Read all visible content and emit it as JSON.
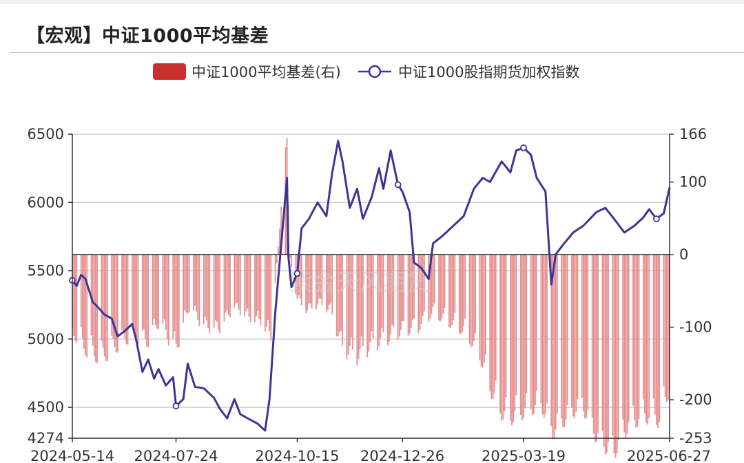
{
  "page": {
    "title": "【宏观】中证1000平均基差",
    "watermark": "紫金天风期货"
  },
  "colors": {
    "bar": "#e58f8f",
    "bar_legend": "#c9302c",
    "line": "#3f3494",
    "grid": "#d0d0d0",
    "axis": "#333333"
  },
  "chart_data": {
    "type": "bar+line",
    "title": "",
    "legend_position": "top-center",
    "grid": true,
    "x_tick_labels": [
      "2024-05-14",
      "2024-07-24",
      "2024-10-15",
      "2024-12-26",
      "2025-03-19",
      "2025-06-27"
    ],
    "x_range": [
      "2024-05-14",
      "2025-06-27"
    ],
    "y_left": {
      "min": 4274,
      "max": 6500,
      "ticks": [
        4274,
        4500,
        5000,
        5500,
        6000,
        6500
      ]
    },
    "y_right": {
      "min": -253,
      "max": 166,
      "ticks": [
        -253,
        -200,
        -100,
        0,
        100,
        166
      ]
    },
    "series": [
      {
        "name": "中证1000平均基差(右)",
        "kind": "bar",
        "axis": "right",
        "points": [
          [
            "2024-05-14",
            -100
          ],
          [
            "2024-05-24",
            -125
          ],
          [
            "2024-06-03",
            -135
          ],
          [
            "2024-06-13",
            -120
          ],
          [
            "2024-06-24",
            -105
          ],
          [
            "2024-07-04",
            -115
          ],
          [
            "2024-07-12",
            -90
          ],
          [
            "2024-07-24",
            -125
          ],
          [
            "2024-08-02",
            -70
          ],
          [
            "2024-08-12",
            -95
          ],
          [
            "2024-08-22",
            -100
          ],
          [
            "2024-09-02",
            -70
          ],
          [
            "2024-09-12",
            -85
          ],
          [
            "2024-09-20",
            -90
          ],
          [
            "2024-09-27",
            -110
          ],
          [
            "2024-10-08",
            160
          ],
          [
            "2024-10-10",
            -5
          ],
          [
            "2024-10-15",
            -60
          ],
          [
            "2024-10-22",
            -75
          ],
          [
            "2024-10-30",
            -65
          ],
          [
            "2024-11-07",
            -75
          ],
          [
            "2024-11-15",
            -125
          ],
          [
            "2024-11-25",
            -135
          ],
          [
            "2024-12-05",
            -120
          ],
          [
            "2024-12-16",
            -110
          ],
          [
            "2024-12-26",
            -100
          ],
          [
            "2025-01-06",
            -95
          ],
          [
            "2025-01-16",
            -75
          ],
          [
            "2025-01-24",
            -85
          ],
          [
            "2025-02-07",
            -100
          ],
          [
            "2025-02-17",
            -130
          ],
          [
            "2025-02-27",
            -185
          ],
          [
            "2025-03-07",
            -210
          ],
          [
            "2025-03-19",
            -200
          ],
          [
            "2025-03-31",
            -190
          ],
          [
            "2025-04-08",
            -225
          ],
          [
            "2025-04-18",
            -205
          ],
          [
            "2025-04-28",
            -190
          ],
          [
            "2025-05-09",
            -235
          ],
          [
            "2025-05-20",
            -250
          ],
          [
            "2025-05-30",
            -215
          ],
          [
            "2025-06-10",
            -205
          ],
          [
            "2025-06-20",
            -210
          ],
          [
            "2025-06-27",
            -170
          ]
        ]
      },
      {
        "name": "中证1000股指期货加权指数",
        "kind": "line",
        "axis": "left",
        "points": [
          [
            "2024-05-14",
            5430
          ],
          [
            "2024-05-17",
            5390
          ],
          [
            "2024-05-20",
            5470
          ],
          [
            "2024-05-23",
            5440
          ],
          [
            "2024-05-28",
            5270
          ],
          [
            "2024-05-31",
            5240
          ],
          [
            "2024-06-05",
            5180
          ],
          [
            "2024-06-10",
            5150
          ],
          [
            "2024-06-14",
            5020
          ],
          [
            "2024-06-19",
            5060
          ],
          [
            "2024-06-24",
            5110
          ],
          [
            "2024-06-27",
            4980
          ],
          [
            "2024-07-01",
            4760
          ],
          [
            "2024-07-05",
            4850
          ],
          [
            "2024-07-09",
            4710
          ],
          [
            "2024-07-12",
            4780
          ],
          [
            "2024-07-17",
            4660
          ],
          [
            "2024-07-22",
            4720
          ],
          [
            "2024-07-24",
            4510
          ],
          [
            "2024-07-29",
            4560
          ],
          [
            "2024-08-01",
            4820
          ],
          [
            "2024-08-06",
            4650
          ],
          [
            "2024-08-12",
            4640
          ],
          [
            "2024-08-19",
            4570
          ],
          [
            "2024-08-23",
            4490
          ],
          [
            "2024-08-28",
            4420
          ],
          [
            "2024-09-02",
            4560
          ],
          [
            "2024-09-06",
            4450
          ],
          [
            "2024-09-11",
            4420
          ],
          [
            "2024-09-18",
            4380
          ],
          [
            "2024-09-23",
            4330
          ],
          [
            "2024-09-26",
            4560
          ],
          [
            "2024-09-30",
            5200
          ],
          [
            "2024-10-08",
            6180
          ],
          [
            "2024-10-09",
            5600
          ],
          [
            "2024-10-11",
            5380
          ],
          [
            "2024-10-15",
            5480
          ],
          [
            "2024-10-18",
            5810
          ],
          [
            "2024-10-23",
            5880
          ],
          [
            "2024-10-29",
            6000
          ],
          [
            "2024-11-04",
            5900
          ],
          [
            "2024-11-08",
            6220
          ],
          [
            "2024-11-12",
            6450
          ],
          [
            "2024-11-15",
            6300
          ],
          [
            "2024-11-20",
            5960
          ],
          [
            "2024-11-25",
            6100
          ],
          [
            "2024-11-29",
            5880
          ],
          [
            "2024-12-05",
            6040
          ],
          [
            "2024-12-10",
            6250
          ],
          [
            "2024-12-13",
            6100
          ],
          [
            "2024-12-18",
            6380
          ],
          [
            "2024-12-23",
            6130
          ],
          [
            "2024-12-26",
            6080
          ],
          [
            "2024-12-31",
            5930
          ],
          [
            "2025-01-03",
            5560
          ],
          [
            "2025-01-08",
            5520
          ],
          [
            "2025-01-13",
            5440
          ],
          [
            "2025-01-16",
            5700
          ],
          [
            "2025-01-23",
            5760
          ],
          [
            "2025-02-06",
            5900
          ],
          [
            "2025-02-13",
            6100
          ],
          [
            "2025-02-19",
            6180
          ],
          [
            "2025-02-24",
            6150
          ],
          [
            "2025-03-04",
            6300
          ],
          [
            "2025-03-10",
            6220
          ],
          [
            "2025-03-14",
            6380
          ],
          [
            "2025-03-19",
            6400
          ],
          [
            "2025-03-24",
            6350
          ],
          [
            "2025-03-28",
            6180
          ],
          [
            "2025-04-03",
            6080
          ],
          [
            "2025-04-07",
            5400
          ],
          [
            "2025-04-10",
            5620
          ],
          [
            "2025-04-15",
            5690
          ],
          [
            "2025-04-22",
            5780
          ],
          [
            "2025-04-29",
            5830
          ],
          [
            "2025-05-08",
            5930
          ],
          [
            "2025-05-14",
            5960
          ],
          [
            "2025-05-20",
            5880
          ],
          [
            "2025-05-27",
            5780
          ],
          [
            "2025-06-03",
            5830
          ],
          [
            "2025-06-09",
            5890
          ],
          [
            "2025-06-13",
            5950
          ],
          [
            "2025-06-18",
            5880
          ],
          [
            "2025-06-23",
            5920
          ],
          [
            "2025-06-27",
            6110
          ]
        ]
      }
    ]
  }
}
